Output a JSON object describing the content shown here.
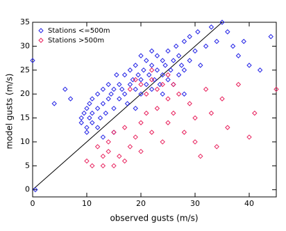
{
  "chart_data": {
    "type": "scatter",
    "x_label": "observed gusts (m/s)",
    "y_label": "model gusts (m/s)",
    "xlim": [
      0,
      45
    ],
    "ylim": [
      -1.5,
      35
    ],
    "xticks": [
      0,
      10,
      20,
      30,
      40
    ],
    "yticks": [
      0,
      5,
      10,
      15,
      20,
      25,
      30,
      35
    ],
    "legend_position": "upper-left",
    "series": [
      {
        "name": "Stations <=500m",
        "color": "#2424e6",
        "x": [
          0,
          0.5,
          9,
          9,
          9.5,
          10,
          10,
          10,
          10.5,
          10.5,
          11,
          11,
          11,
          12,
          12,
          12,
          12.5,
          13,
          13,
          13.5,
          14,
          14,
          14.5,
          15,
          15,
          15.5,
          16,
          16,
          16.5,
          17,
          17,
          17.5,
          18,
          18,
          18.5,
          19,
          19,
          19.5,
          20,
          20,
          20,
          20.5,
          21,
          21,
          21.5,
          22,
          22,
          22,
          22.5,
          23,
          23,
          23.5,
          24,
          24,
          24.5,
          25,
          25,
          25.5,
          26,
          26,
          26.5,
          27,
          27,
          27.5,
          28,
          28,
          29,
          29,
          30,
          30.5,
          31,
          32,
          33,
          34,
          35,
          36,
          37,
          38,
          39,
          40,
          42,
          44,
          4,
          6,
          7,
          15,
          13,
          19,
          24,
          28
        ],
        "values": [
          27,
          0,
          14,
          15,
          16,
          12,
          13,
          17,
          15,
          18,
          14,
          16,
          19,
          13,
          17,
          20,
          15,
          18,
          21,
          16,
          19,
          22,
          20,
          17,
          21,
          24,
          19,
          22,
          21,
          20,
          24,
          18,
          22,
          25,
          23,
          21,
          26,
          24,
          20,
          23,
          28,
          25,
          22,
          27,
          24,
          21,
          26,
          29,
          23,
          25,
          28,
          22,
          24,
          27,
          26,
          23,
          29,
          25,
          22,
          27,
          30,
          24,
          28,
          26,
          31,
          25,
          27,
          32,
          29,
          33,
          26,
          30,
          34,
          31,
          35,
          33,
          30,
          28,
          31,
          26,
          25,
          32,
          18,
          21,
          19,
          12,
          11,
          17,
          20,
          20
        ]
      },
      {
        "name": "Stations >500m",
        "color": "#e8205c",
        "x": [
          10,
          11,
          12,
          13,
          13,
          14,
          14,
          15,
          15,
          16,
          17,
          17,
          18,
          18,
          19,
          19,
          20,
          20,
          21,
          21,
          22,
          22,
          23,
          23,
          24,
          24,
          25,
          25,
          26,
          26,
          27,
          28,
          29,
          30,
          30,
          31,
          32,
          33,
          34,
          35,
          36,
          38,
          40,
          41,
          45,
          22,
          25,
          20
        ],
        "values": [
          6,
          5,
          9,
          5,
          7,
          10,
          8,
          5,
          12,
          7,
          6,
          13,
          9,
          21,
          11,
          23,
          8,
          14,
          20,
          16,
          12,
          23,
          21,
          17,
          10,
          22,
          19,
          14,
          22,
          16,
          20,
          12,
          18,
          10,
          15,
          7,
          21,
          16,
          9,
          19,
          13,
          22,
          11,
          16,
          21,
          25,
          24,
          22
        ]
      }
    ]
  }
}
